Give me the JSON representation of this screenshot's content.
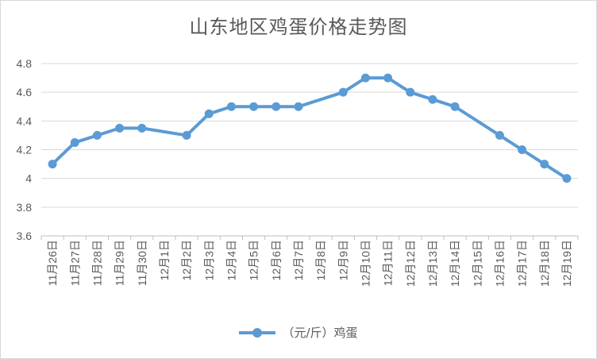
{
  "chart_data": {
    "type": "line",
    "title": "山东地区鸡蛋价格走势图",
    "xlabel": "",
    "ylabel": "",
    "categories": [
      "11月26日",
      "11月27日",
      "11月28日",
      "11月29日",
      "11月30日",
      "12月1日",
      "12月2日",
      "12月3日",
      "12月4日",
      "12月5日",
      "12月6日",
      "12月7日",
      "12月8日",
      "12月9日",
      "12月10日",
      "12月11日",
      "12月12日",
      "12月13日",
      "12月14日",
      "12月15日",
      "12月16日",
      "12月17日",
      "12月18日",
      "12月19日"
    ],
    "y_ticks": [
      "3.6",
      "3.8",
      "4",
      "4.2",
      "4.4",
      "4.6",
      "4.8"
    ],
    "ylim": [
      3.6,
      4.8
    ],
    "grid": true,
    "legend_position": "bottom",
    "series": [
      {
        "name": "（元/斤）鸡蛋",
        "color": "#5b9bd5",
        "values": [
          4.1,
          4.25,
          4.3,
          4.35,
          4.35,
          null,
          4.3,
          4.45,
          4.5,
          4.5,
          4.5,
          4.5,
          null,
          4.6,
          4.7,
          4.7,
          4.6,
          4.55,
          4.5,
          null,
          4.3,
          4.2,
          4.1,
          4.0
        ]
      }
    ]
  }
}
